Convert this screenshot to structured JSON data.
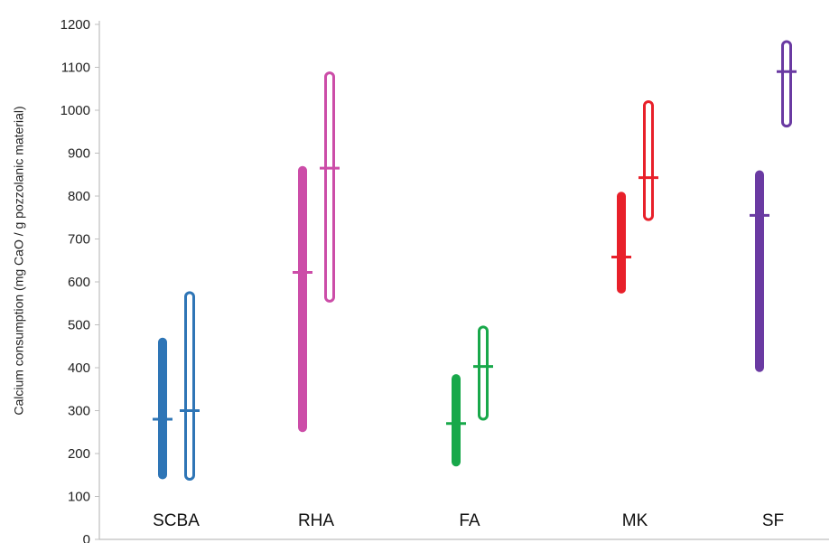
{
  "chart_data": {
    "type": "range",
    "ylabel": "Calcium consumption  (mg CaO / g pozzolanic material)",
    "ylim": [
      0,
      1200
    ],
    "yticks": [
      "0",
      "100",
      "200",
      "300",
      "400",
      "500",
      "600",
      "700",
      "800",
      "900",
      "1000",
      "1100",
      "1200"
    ],
    "grid": false,
    "legend": "none",
    "categories": [
      "SCBA",
      "RHA",
      "FA",
      "MK",
      "SF"
    ],
    "groups": [
      {
        "category": "SCBA",
        "color": "#2e75b6",
        "ranges": [
          {
            "style": "filled",
            "min": 140,
            "max": 470,
            "mean": 280
          },
          {
            "style": "hollow",
            "min": 140,
            "max": 575,
            "mean": 300
          }
        ]
      },
      {
        "category": "RHA",
        "color": "#cc4da8",
        "ranges": [
          {
            "style": "filled",
            "min": 250,
            "max": 870,
            "mean": 622
          },
          {
            "style": "hollow",
            "min": 555,
            "max": 1087,
            "mean": 865
          }
        ]
      },
      {
        "category": "FA",
        "color": "#18a84a",
        "ranges": [
          {
            "style": "filled",
            "min": 170,
            "max": 385,
            "mean": 270
          },
          {
            "style": "hollow",
            "min": 280,
            "max": 495,
            "mean": 403
          }
        ]
      },
      {
        "category": "MK",
        "color": "#e8202a",
        "ranges": [
          {
            "style": "filled",
            "min": 573,
            "max": 810,
            "mean": 658
          },
          {
            "style": "hollow",
            "min": 745,
            "max": 1020,
            "mean": 843
          }
        ]
      },
      {
        "category": "SF",
        "color": "#6a3aa2",
        "ranges": [
          {
            "style": "filled",
            "min": 390,
            "max": 860,
            "mean": 755
          },
          {
            "style": "hollow",
            "min": 963,
            "max": 1160,
            "mean": 1090
          }
        ]
      }
    ]
  }
}
